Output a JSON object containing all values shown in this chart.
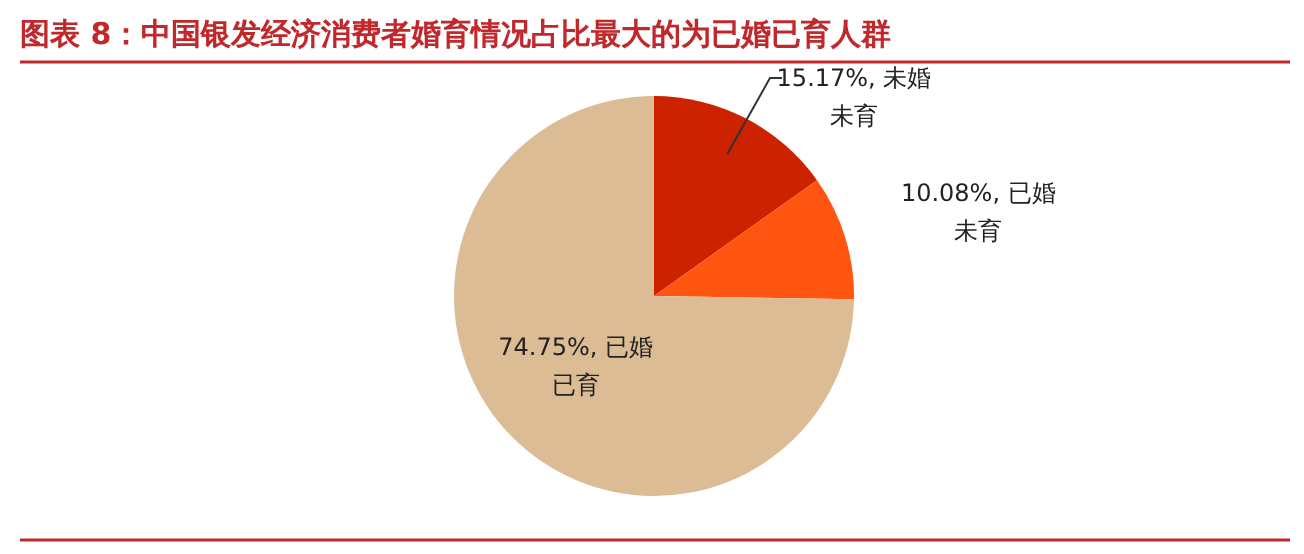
{
  "chart_data": {
    "type": "pie",
    "title": "图表 8：中国银发经济消费者婚育情况占比最大的为已婚已育人群",
    "values": [
      15.17,
      10.08,
      74.75
    ],
    "colors": [
      "#cc2200",
      "#ff5511",
      "#dcbc94"
    ],
    "value_labels": [
      "15.17%, 未婚未育",
      "10.08%, 已婚未育",
      "74.75%, 已婚已育"
    ]
  }
}
